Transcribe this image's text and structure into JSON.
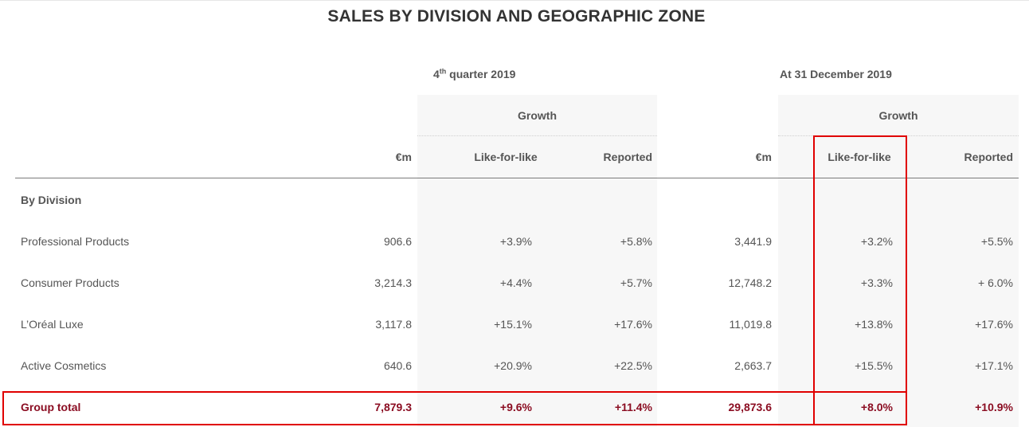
{
  "title": "SALES BY DIVISION AND GEOGRAPHIC ZONE",
  "periods": {
    "q4": {
      "prefix": "4",
      "sup": "th",
      "suffix": " quarter 2019"
    },
    "fy": "At 31 December 2019"
  },
  "headers": {
    "growth": "Growth",
    "eur_m": "€m",
    "lfl": "Like-for-like",
    "reported": "Reported"
  },
  "section": "By Division",
  "rows": [
    {
      "label": "Professional Products",
      "q4_eur": "906.6",
      "q4_lfl": "+3.9%",
      "q4_rep": "+5.8%",
      "fy_eur": "3,441.9",
      "fy_lfl": "+3.2%",
      "fy_rep": "+5.5%"
    },
    {
      "label": "Consumer Products",
      "q4_eur": "3,214.3",
      "q4_lfl": "+4.4%",
      "q4_rep": "+5.7%",
      "fy_eur": "12,748.2",
      "fy_lfl": "+3.3%",
      "fy_rep": "+ 6.0%"
    },
    {
      "label": "L’Oréal Luxe",
      "q4_eur": "3,117.8",
      "q4_lfl": "+15.1%",
      "q4_rep": "+17.6%",
      "fy_eur": "11,019.8",
      "fy_lfl": "+13.8%",
      "fy_rep": "+17.6%"
    },
    {
      "label": "Active Cosmetics",
      "q4_eur": "640.6",
      "q4_lfl": "+20.9%",
      "q4_rep": "+22.5%",
      "fy_eur": "2,663.7",
      "fy_lfl": "+15.5%",
      "fy_rep": "+17.1%"
    }
  ],
  "total": {
    "label": "Group total",
    "q4_eur": "7,879.3",
    "q4_lfl": "+9.6%",
    "q4_rep": "+11.4%",
    "fy_eur": "29,873.6",
    "fy_lfl": "+8.0%",
    "fy_rep": "+10.9%"
  },
  "colors": {
    "highlight": "#e00000",
    "total_text": "#8b0d22",
    "shade": "#f7f7f7"
  }
}
